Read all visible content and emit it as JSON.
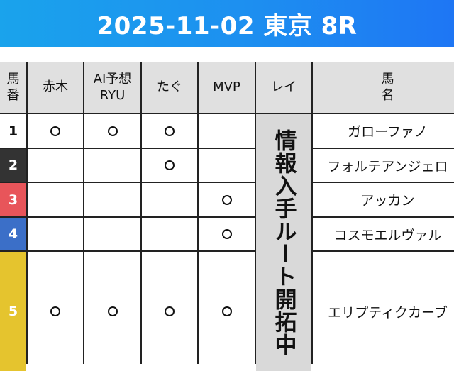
{
  "header": {
    "title": "2025-11-02 東京 8R"
  },
  "colors": {
    "header_start": "#1aa3ec",
    "header_end": "#1e76f4",
    "frame_1": "#ffffff",
    "frame_2": "#333333",
    "frame_3": "#e8555a",
    "frame_4": "#3b6fc8",
    "frame_5": "#e5c42e"
  },
  "table": {
    "headers": {
      "umaban": "馬\n番",
      "akagi": "赤木",
      "ai": "AI予想\nRYU",
      "tagu": "たぐ",
      "mvp": "MVP",
      "rei": "レイ",
      "name": "馬\n名"
    },
    "rei_notice": "情報入手ルート開拓中",
    "mark_symbol": "circle",
    "rows": [
      {
        "number": "1",
        "name": "ガローファノ",
        "akagi": true,
        "ai": true,
        "tagu": true,
        "mvp": false
      },
      {
        "number": "2",
        "name": "フォルテアンジェロ",
        "akagi": false,
        "ai": false,
        "tagu": true,
        "mvp": false
      },
      {
        "number": "3",
        "name": "アッカン",
        "akagi": false,
        "ai": false,
        "tagu": false,
        "mvp": true
      },
      {
        "number": "4",
        "name": "コスモエルヴァル",
        "akagi": false,
        "ai": false,
        "tagu": false,
        "mvp": true
      },
      {
        "number": "5",
        "name": "エリプティクカーブ",
        "akagi": true,
        "ai": true,
        "tagu": true,
        "mvp": true
      }
    ]
  }
}
